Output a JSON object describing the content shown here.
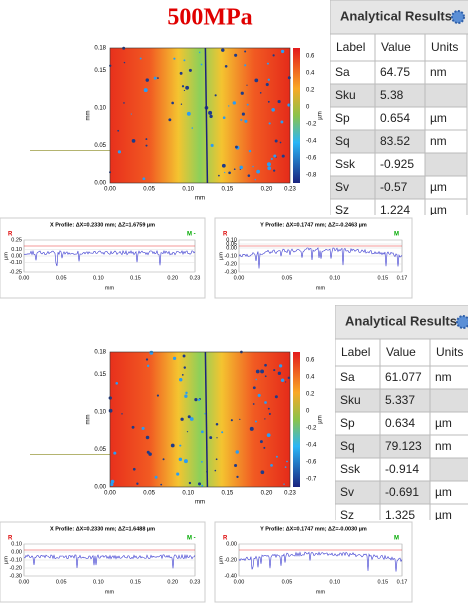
{
  "title": "500MPa",
  "panels": [
    {
      "map": {
        "yticks": [
          "0.18",
          "0.15",
          "0.10",
          "0.05",
          "0.00"
        ],
        "xticks": [
          "0.00",
          "0.05",
          "0.10",
          "0.15",
          "0.20",
          "0.23"
        ],
        "x_label": "mm",
        "y_label": "mm",
        "colorbar_ticks": [
          "0.6",
          "0.4",
          "0.2",
          "0",
          "-0.2",
          "-0.4",
          "-0.6",
          "-0.8"
        ],
        "colorbar_label": "µm"
      },
      "table": {
        "title": "Analytical Results",
        "columns": [
          "Label",
          "Value",
          "Units"
        ],
        "rows": [
          [
            "Sa",
            "64.75",
            "nm"
          ],
          [
            "Sku",
            "5.38"
          ],
          [
            "Sp",
            "0.654",
            "µm"
          ],
          [
            "Sq",
            "83.52",
            "nm"
          ],
          [
            "Ssk",
            "-0.925"
          ],
          [
            "Sv",
            "-0.57",
            "µm"
          ],
          [
            "Sz",
            "1.224",
            "µm"
          ]
        ]
      },
      "x_profile": {
        "title": "X Profile: ΔX=0.2330 mm; ΔZ=1.6759 µm",
        "left_marker": "R",
        "right_marker": "M -",
        "yticks": [
          "0.25",
          "0.10",
          "0.00",
          "-0.10",
          "-0.25"
        ],
        "xticks": [
          "0.00",
          "0.05",
          "0.10",
          "0.15",
          "0.20",
          "0.23"
        ],
        "y_label": "µm",
        "x_label": "mm"
      },
      "y_profile": {
        "title": "Y Profile: ΔX=0.1747 mm; ΔZ=-0.2463 µm",
        "left_marker": "R",
        "right_marker": "M",
        "yticks": [
          "0.10",
          "0.05",
          "0.00",
          "-0.10",
          "-0.20",
          "-0.30"
        ],
        "xticks": [
          "0.00",
          "0.05",
          "0.10",
          "0.15",
          "0.17"
        ],
        "y_label": "µm",
        "x_label": "mm"
      }
    },
    {
      "map": {
        "yticks": [
          "0.18",
          "0.15",
          "0.10",
          "0.05",
          "0.00"
        ],
        "xticks": [
          "0.00",
          "0.05",
          "0.10",
          "0.15",
          "0.20",
          "0.23"
        ],
        "x_label": "mm",
        "y_label": "mm",
        "colorbar_ticks": [
          "0.6",
          "0.4",
          "0.2",
          "0",
          "-0.2",
          "-0.4",
          "-0.6",
          "-0.7"
        ],
        "colorbar_label": "µm"
      },
      "table": {
        "title": "Analytical Results",
        "columns": [
          "Label",
          "Value",
          "Units"
        ],
        "rows": [
          [
            "Sa",
            "61.077",
            "nm"
          ],
          [
            "Sku",
            "5.337"
          ],
          [
            "Sp",
            "0.634",
            "µm"
          ],
          [
            "Sq",
            "79.123",
            "nm"
          ],
          [
            "Ssk",
            "-0.914"
          ],
          [
            "Sv",
            "-0.691",
            "µm"
          ],
          [
            "Sz",
            "1.325",
            "µm"
          ]
        ]
      },
      "x_profile": {
        "title": "X Profile: ΔX=0.2330 mm; ΔZ=1.6488 µm",
        "left_marker": "R",
        "right_marker": "M -",
        "yticks": [
          "0.10",
          "0.00",
          "-0.10",
          "-0.20",
          "-0.30"
        ],
        "xticks": [
          "0.00",
          "0.05",
          "0.10",
          "0.15",
          "0.20",
          "0.23"
        ],
        "y_label": "µm",
        "x_label": "mm"
      },
      "y_profile": {
        "title": "Y Profile: ΔX=0.1747 mm; ΔZ=-0.0030 µm",
        "left_marker": "R",
        "right_marker": "M",
        "yticks": [
          "0.00",
          "-0.20",
          "-0.40"
        ],
        "xticks": [
          "0.00",
          "0.05",
          "0.10",
          "0.15",
          "0.17"
        ],
        "y_label": "µm",
        "x_label": "mm"
      }
    }
  ]
}
